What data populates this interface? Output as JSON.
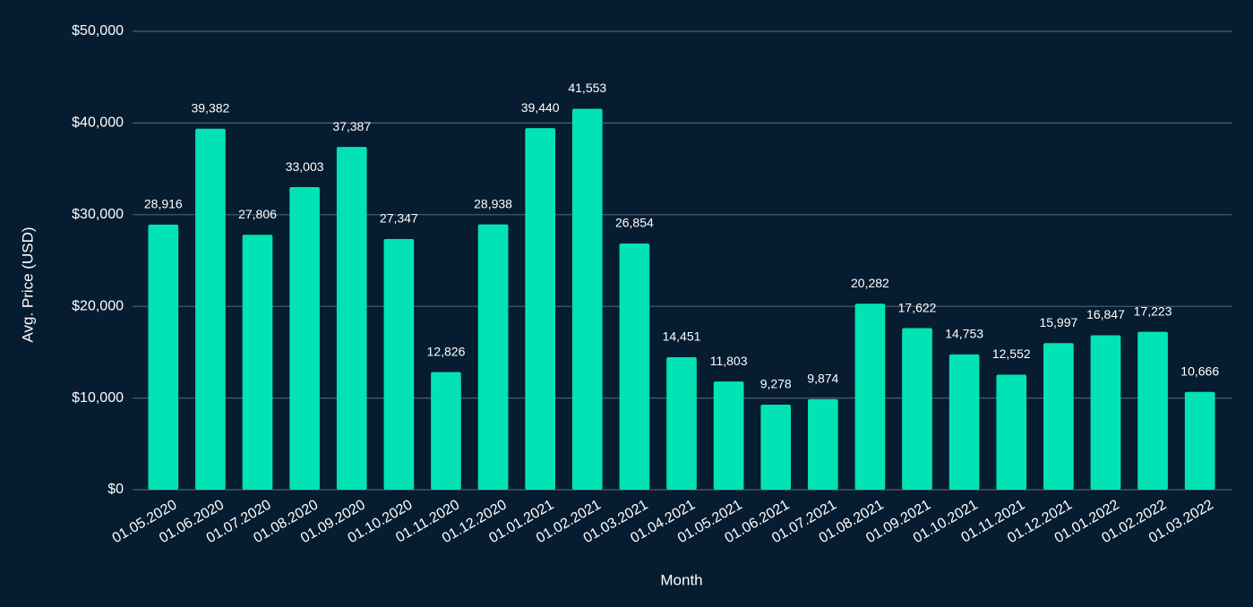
{
  "chart_data": {
    "type": "bar",
    "x_label": "Month",
    "y_label": "Avg. Price (USD)",
    "categories": [
      "01.05.2020",
      "01.06.2020",
      "01.07.2020",
      "01.08.2020",
      "01.09.2020",
      "01.10.2020",
      "01.11.2020",
      "01.12.2020",
      "01.01.2021",
      "01.02.2021",
      "01.03.2021",
      "01.04.2021",
      "01.05.2021",
      "01.06.2021",
      "01.07.2021",
      "01.08.2021",
      "01.09.2021",
      "01.10.2021",
      "01.11.2021",
      "01.12.2021",
      "01.01.2022",
      "01.02.2022",
      "01.03.2022"
    ],
    "values": [
      28916,
      39382,
      27806,
      33003,
      37387,
      27347,
      12826,
      28938,
      39440,
      41553,
      26854,
      14451,
      11803,
      9278,
      9874,
      20282,
      17622,
      14753,
      12552,
      15997,
      16847,
      17223,
      10666
    ],
    "value_labels": [
      "28,916",
      "39,382",
      "27,806",
      "33,003",
      "37,387",
      "27,347",
      "12,826",
      "28,938",
      "39,440",
      "41,553",
      "26,854",
      "14,451",
      "11,803",
      "9,278",
      "9,874",
      "20,282",
      "17,622",
      "14,753",
      "12,552",
      "15,997",
      "16,847",
      "17,223",
      "10,666"
    ],
    "color": "#02e3b5",
    "ylim": [
      0,
      50000
    ],
    "yticks": [
      {
        "value": 0,
        "label": "$0"
      },
      {
        "value": 10000,
        "label": "$10,000"
      },
      {
        "value": 20000,
        "label": "$20,000"
      },
      {
        "value": 30000,
        "label": "$30,000"
      },
      {
        "value": 40000,
        "label": "$40,000"
      },
      {
        "value": 50000,
        "label": "$50,000"
      }
    ],
    "grid": true
  }
}
